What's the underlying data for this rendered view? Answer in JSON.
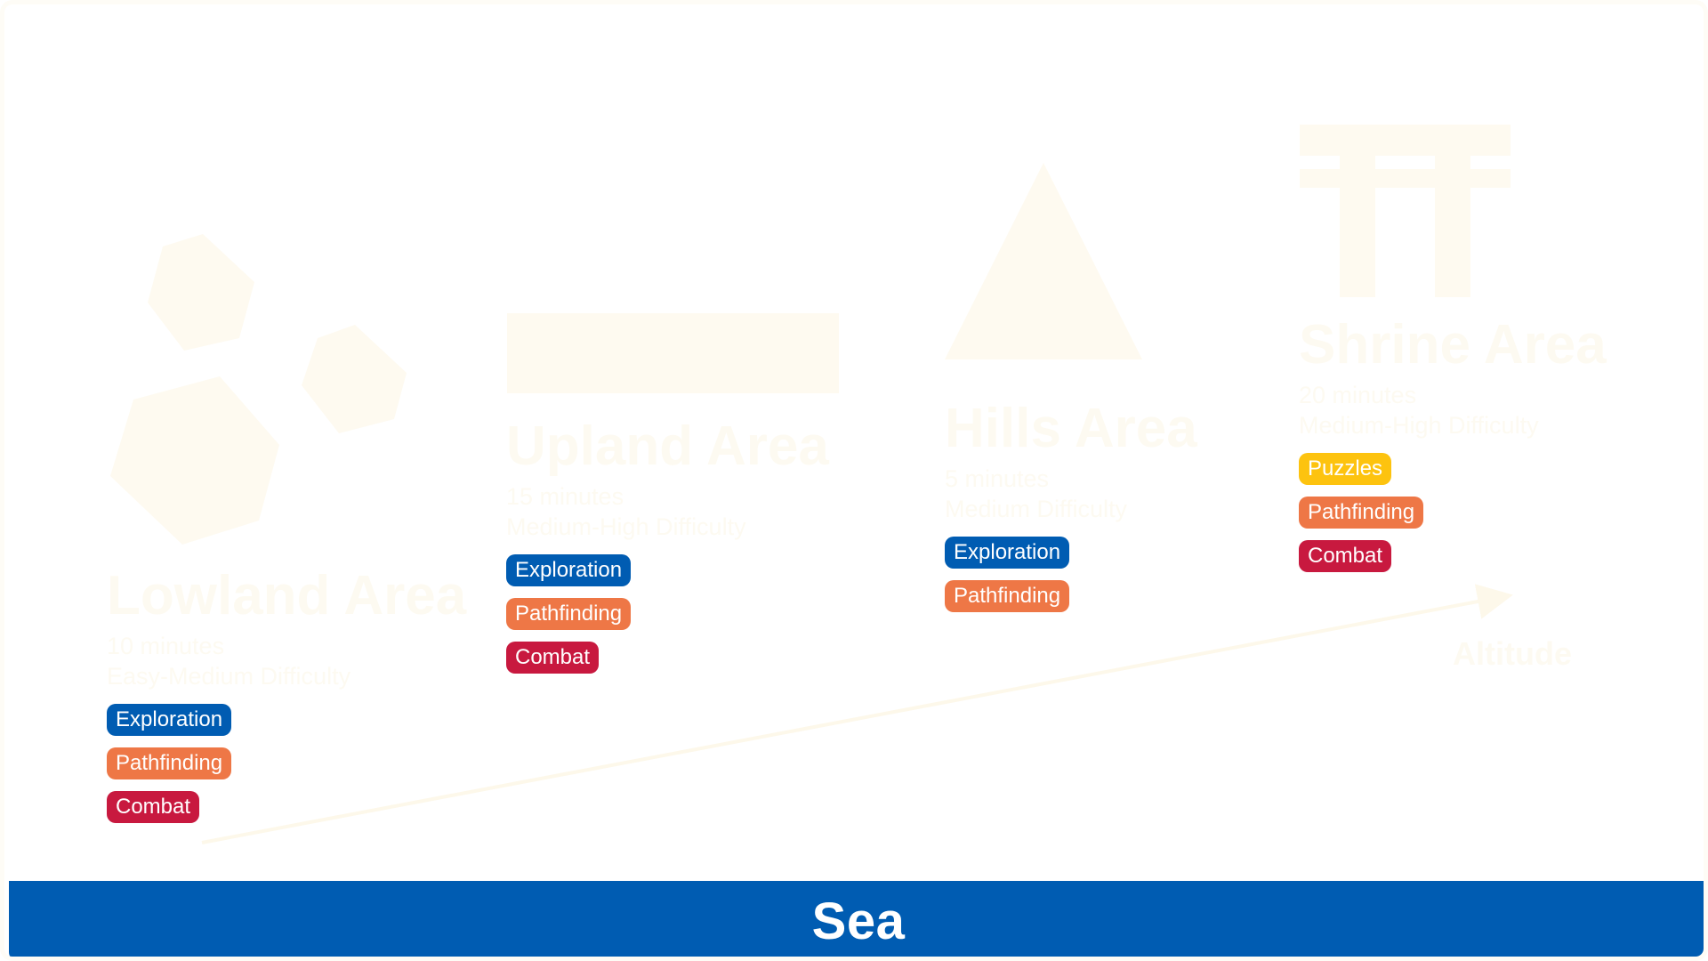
{
  "colors": {
    "exploration": "#005cb2",
    "pathfinding": "#ee7746",
    "combat": "#c8193f",
    "puzzles": "#fdc30f",
    "sea": "#005cb2",
    "faint": "#fdfaf1"
  },
  "areas": [
    {
      "title": "Lowland Area",
      "duration": "10 minutes",
      "difficulty": "Easy-Medium Difficulty",
      "tags": [
        {
          "label": "Exploration",
          "kind": "exploration"
        },
        {
          "label": "Pathfinding",
          "kind": "pathfinding"
        },
        {
          "label": "Combat",
          "kind": "combat"
        }
      ]
    },
    {
      "title": "Upland Area",
      "duration": "15 minutes",
      "difficulty": "Medium-High Difficulty",
      "tags": [
        {
          "label": "Exploration",
          "kind": "exploration"
        },
        {
          "label": "Pathfinding",
          "kind": "pathfinding"
        },
        {
          "label": "Combat",
          "kind": "combat"
        }
      ]
    },
    {
      "title": "Hills Area",
      "duration": "5 minutes",
      "difficulty": "Medium Difficulty",
      "tags": [
        {
          "label": "Exploration",
          "kind": "exploration"
        },
        {
          "label": "Pathfinding",
          "kind": "pathfinding"
        }
      ]
    },
    {
      "title": "Shrine Area",
      "duration": "20 minutes",
      "difficulty": "Medium-High Difficulty",
      "tags": [
        {
          "label": "Puzzles",
          "kind": "puzzles"
        },
        {
          "label": "Pathfinding",
          "kind": "pathfinding"
        },
        {
          "label": "Combat",
          "kind": "combat"
        }
      ]
    }
  ],
  "axis": {
    "label": "Altitude"
  },
  "sea": {
    "label": "Sea"
  },
  "icons": [
    "hexagons-icon",
    "plateau-icon",
    "mountain-icon",
    "torii-gate-icon",
    "altitude-arrow-icon"
  ]
}
